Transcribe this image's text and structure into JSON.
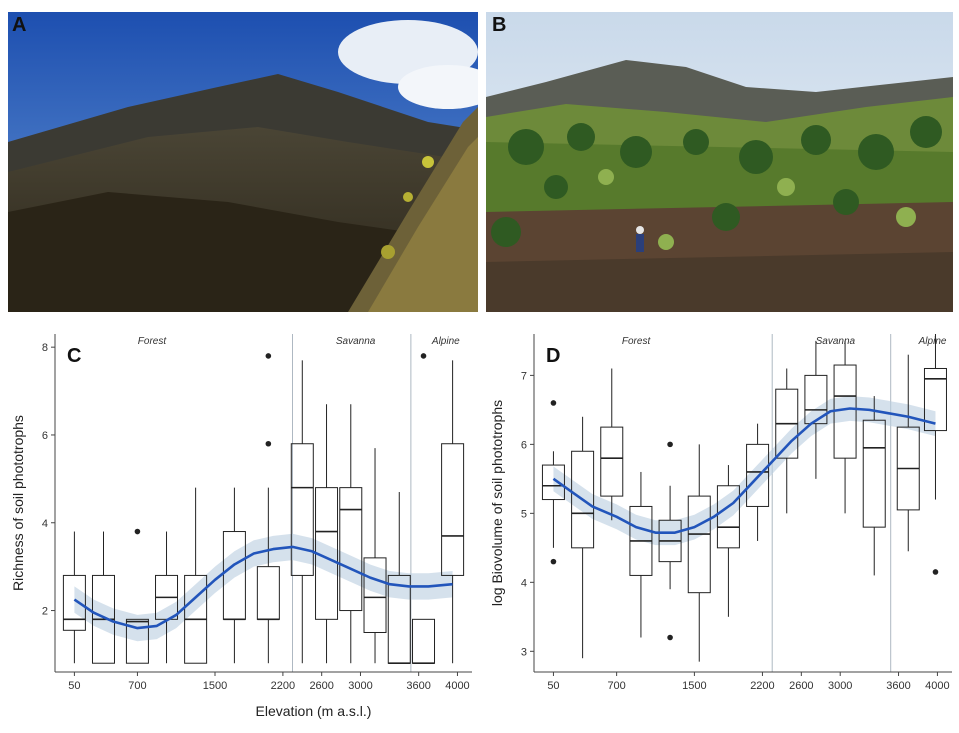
{
  "panels": {
    "a": {
      "letter": "A"
    },
    "b": {
      "letter": "B"
    }
  },
  "colors": {
    "trend": "#2255bb",
    "band": "#b9cde0",
    "box": "#222222"
  },
  "chart_data": [
    {
      "type": "box",
      "letter": "C",
      "ylabel": "Richness of soil phototrophs",
      "xlabel": "Elevation (m a.s.l.)",
      "ylim": [
        0.6,
        8.3
      ],
      "yticks": [
        2,
        4,
        6,
        8
      ],
      "xlim": [
        -150,
        4150
      ],
      "xticks": [
        "50",
        "700",
        "1500",
        "2200",
        "2600",
        "3000",
        "3600",
        "4000"
      ],
      "xtick_values": [
        50,
        700,
        1500,
        2200,
        2600,
        3000,
        3600,
        4000
      ],
      "zones": [
        {
          "name": "Forest",
          "x": 850
        },
        {
          "name": "Savanna",
          "x": 2950
        },
        {
          "name": "Alpine",
          "x": 3880
        }
      ],
      "zone_boundaries": [
        2300,
        3520
      ],
      "boxes": [
        {
          "x": 50,
          "q1": 1.55,
          "median": 1.8,
          "q3": 2.8,
          "low": 0.8,
          "high": 3.8,
          "outliers": []
        },
        {
          "x": 350,
          "q1": 0.8,
          "median": 1.8,
          "q3": 2.8,
          "low": 0.8,
          "high": 3.8,
          "outliers": []
        },
        {
          "x": 700,
          "q1": 0.8,
          "median": 1.75,
          "q3": 1.8,
          "low": 0.8,
          "high": 1.8,
          "outliers": [
            3.8
          ]
        },
        {
          "x": 1000,
          "q1": 1.8,
          "median": 2.3,
          "q3": 2.8,
          "low": 0.8,
          "high": 3.8,
          "outliers": []
        },
        {
          "x": 1300,
          "q1": 0.8,
          "median": 1.8,
          "q3": 2.8,
          "low": 0.8,
          "high": 4.8,
          "outliers": []
        },
        {
          "x": 1700,
          "q1": 1.8,
          "median": 1.8,
          "q3": 3.8,
          "low": 0.8,
          "high": 4.8,
          "outliers": []
        },
        {
          "x": 2050,
          "q1": 1.8,
          "median": 1.8,
          "q3": 3.0,
          "low": 0.8,
          "high": 4.8,
          "outliers": [
            5.8,
            7.8
          ]
        },
        {
          "x": 2400,
          "q1": 2.8,
          "median": 4.8,
          "q3": 5.8,
          "low": 0.8,
          "high": 7.7,
          "outliers": []
        },
        {
          "x": 2650,
          "q1": 1.8,
          "median": 3.8,
          "q3": 4.8,
          "low": 0.8,
          "high": 6.7,
          "outliers": []
        },
        {
          "x": 2900,
          "q1": 2.0,
          "median": 4.3,
          "q3": 4.8,
          "low": 0.8,
          "high": 6.7,
          "outliers": []
        },
        {
          "x": 3150,
          "q1": 1.5,
          "median": 2.3,
          "q3": 3.2,
          "low": 0.8,
          "high": 5.7,
          "outliers": []
        },
        {
          "x": 3400,
          "q1": 0.8,
          "median": 0.8,
          "q3": 2.8,
          "low": 0.8,
          "high": 4.7,
          "outliers": []
        },
        {
          "x": 3650,
          "q1": 0.8,
          "median": 0.8,
          "q3": 1.8,
          "low": 0.8,
          "high": 1.8,
          "outliers": [
            7.8
          ]
        },
        {
          "x": 3950,
          "q1": 2.8,
          "median": 3.7,
          "q3": 5.8,
          "low": 0.8,
          "high": 7.7,
          "outliers": []
        }
      ],
      "trend": {
        "x": [
          50,
          250,
          450,
          700,
          900,
          1100,
          1300,
          1500,
          1700,
          1900,
          2100,
          2300,
          2500,
          2700,
          2900,
          3100,
          3300,
          3500,
          3700,
          3950
        ],
        "y": [
          2.25,
          1.95,
          1.75,
          1.6,
          1.65,
          1.9,
          2.3,
          2.7,
          3.05,
          3.3,
          3.4,
          3.45,
          3.35,
          3.15,
          2.95,
          2.75,
          2.6,
          2.55,
          2.55,
          2.6
        ]
      },
      "band_halfwidth": 0.3
    },
    {
      "type": "box",
      "letter": "D",
      "ylabel": "log Biovolume of soil phototrophs",
      "xlabel": "",
      "ylim": [
        2.7,
        7.6
      ],
      "yticks": [
        3,
        4,
        5,
        6,
        7
      ],
      "xlim": [
        -150,
        4150
      ],
      "xticks": [
        "50",
        "700",
        "1500",
        "2200",
        "2600",
        "3000",
        "3600",
        "4000"
      ],
      "xtick_values": [
        50,
        700,
        1500,
        2200,
        2600,
        3000,
        3600,
        4000
      ],
      "zones": [
        {
          "name": "Forest",
          "x": 900
        },
        {
          "name": "Savanna",
          "x": 2950
        },
        {
          "name": "Alpine",
          "x": 3950
        }
      ],
      "zone_boundaries": [
        2300,
        3520
      ],
      "boxes": [
        {
          "x": 50,
          "q1": 5.2,
          "median": 5.4,
          "q3": 5.7,
          "low": 4.5,
          "high": 5.9,
          "outliers": [
            4.3,
            6.6
          ]
        },
        {
          "x": 350,
          "q1": 4.5,
          "median": 5.0,
          "q3": 5.9,
          "low": 2.9,
          "high": 6.4,
          "outliers": []
        },
        {
          "x": 650,
          "q1": 5.25,
          "median": 5.8,
          "q3": 6.25,
          "low": 4.9,
          "high": 7.1,
          "outliers": []
        },
        {
          "x": 950,
          "q1": 4.1,
          "median": 4.6,
          "q3": 5.1,
          "low": 3.2,
          "high": 5.6,
          "outliers": []
        },
        {
          "x": 1250,
          "q1": 4.3,
          "median": 4.6,
          "q3": 4.9,
          "low": 3.9,
          "high": 5.4,
          "outliers": [
            3.2,
            6.0
          ]
        },
        {
          "x": 1550,
          "q1": 3.85,
          "median": 4.7,
          "q3": 5.25,
          "low": 2.85,
          "high": 6.0,
          "outliers": []
        },
        {
          "x": 1850,
          "q1": 4.5,
          "median": 4.8,
          "q3": 5.4,
          "low": 3.5,
          "high": 5.7,
          "outliers": []
        },
        {
          "x": 2150,
          "q1": 5.1,
          "median": 5.6,
          "q3": 6.0,
          "low": 4.6,
          "high": 6.3,
          "outliers": []
        },
        {
          "x": 2450,
          "q1": 5.8,
          "median": 6.3,
          "q3": 6.8,
          "low": 5.0,
          "high": 7.1,
          "outliers": []
        },
        {
          "x": 2750,
          "q1": 6.3,
          "median": 6.5,
          "q3": 7.0,
          "low": 5.5,
          "high": 7.5,
          "outliers": []
        },
        {
          "x": 3050,
          "q1": 5.8,
          "median": 6.7,
          "q3": 7.15,
          "low": 5.0,
          "high": 7.5,
          "outliers": []
        },
        {
          "x": 3350,
          "q1": 4.8,
          "median": 5.95,
          "q3": 6.35,
          "low": 4.1,
          "high": 6.7,
          "outliers": []
        },
        {
          "x": 3700,
          "q1": 5.05,
          "median": 5.65,
          "q3": 6.25,
          "low": 4.45,
          "high": 7.3,
          "outliers": []
        },
        {
          "x": 3980,
          "q1": 6.2,
          "median": 6.95,
          "q3": 7.1,
          "low": 5.2,
          "high": 7.6,
          "outliers": [
            4.15
          ]
        }
      ],
      "trend": {
        "x": [
          50,
          250,
          450,
          700,
          900,
          1100,
          1300,
          1500,
          1700,
          1900,
          2100,
          2300,
          2500,
          2700,
          2900,
          3100,
          3300,
          3500,
          3700,
          3980
        ],
        "y": [
          5.5,
          5.3,
          5.1,
          4.95,
          4.8,
          4.72,
          4.72,
          4.8,
          4.95,
          5.15,
          5.45,
          5.75,
          6.05,
          6.3,
          6.48,
          6.52,
          6.5,
          6.45,
          6.4,
          6.3
        ]
      },
      "band_halfwidth": 0.18
    }
  ]
}
